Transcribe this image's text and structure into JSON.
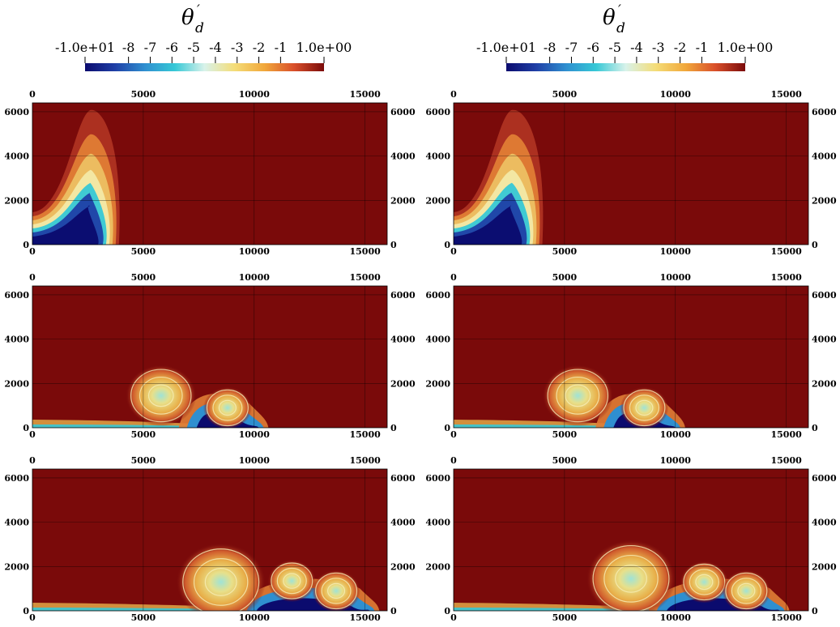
{
  "chart_data": {
    "type": "heatmap",
    "colorbar": {
      "title": "θ",
      "title_subscript": "d",
      "title_prime": "′",
      "ticks": [
        "-1.0e+01",
        "-8",
        "-7",
        "-6",
        "-5",
        "-4",
        "-3",
        "-2",
        "-1",
        "1.0e+00"
      ],
      "tick_values": [
        -10,
        -8,
        -7,
        -6,
        -5,
        -4,
        -3,
        -2,
        -1,
        1
      ],
      "range": [
        -10,
        1
      ],
      "colormap": [
        "#0b0b6e",
        "#1f3fa6",
        "#2f8fd0",
        "#36c8d6",
        "#d8f2ea",
        "#f4dd78",
        "#f1a83b",
        "#d94f2a",
        "#7a0a0a"
      ]
    },
    "xlim": [
      0,
      16000
    ],
    "ylim": [
      0,
      6400
    ],
    "x_ticks": [
      "0",
      "5000",
      "10000",
      "15000"
    ],
    "x_tick_values": [
      0,
      5000,
      10000,
      15000
    ],
    "y_ticks": [
      "0",
      "2000",
      "4000",
      "6000"
    ],
    "y_tick_values": [
      0,
      2000,
      4000,
      6000
    ],
    "background_value": 0,
    "panels": [
      {
        "row": 0,
        "col": 0,
        "front_x": 3900,
        "head_height": 2050,
        "eddies": []
      },
      {
        "row": 0,
        "col": 1,
        "front_x": 4000,
        "head_height": 2050,
        "eddies": []
      },
      {
        "row": 1,
        "col": 0,
        "front_x": 10500,
        "head_height": 1250,
        "eddies": [
          {
            "x": 5800,
            "y": 1450
          },
          {
            "x": 8800,
            "y": 900
          }
        ]
      },
      {
        "row": 1,
        "col": 1,
        "front_x": 10300,
        "head_height": 1250,
        "eddies": [
          {
            "x": 5600,
            "y": 1450
          },
          {
            "x": 8600,
            "y": 900
          }
        ]
      },
      {
        "row": 2,
        "col": 0,
        "front_x": 15500,
        "head_height": 1150,
        "eddies": [
          {
            "x": 8500,
            "y": 1300
          },
          {
            "x": 11700,
            "y": 1350
          },
          {
            "x": 13700,
            "y": 900
          }
        ]
      },
      {
        "row": 2,
        "col": 1,
        "front_x": 15000,
        "head_height": 1150,
        "eddies": [
          {
            "x": 8000,
            "y": 1450
          },
          {
            "x": 11300,
            "y": 1300
          },
          {
            "x": 13200,
            "y": 900
          }
        ]
      }
    ]
  }
}
